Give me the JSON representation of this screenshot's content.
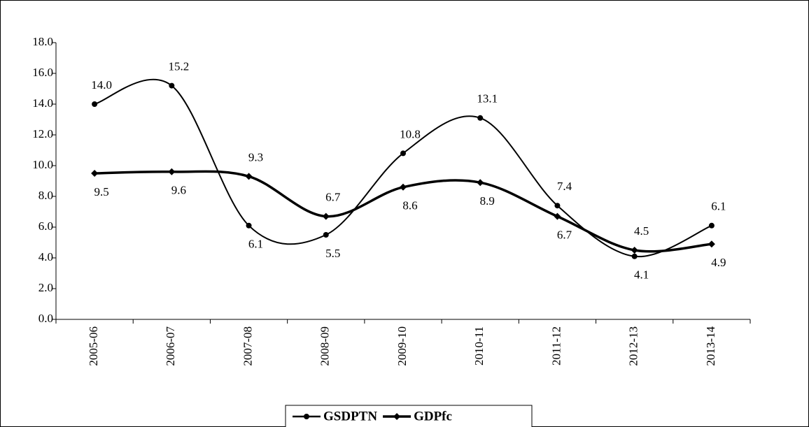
{
  "chart_data": {
    "type": "line",
    "categories": [
      "2005-06",
      "2006-07",
      "2007-08",
      "2008-09",
      "2009-10",
      "2010-11",
      "2011-12",
      "2012-13",
      "2013-14"
    ],
    "series": [
      {
        "name": "GSDPTN",
        "color": "#000000",
        "marker": "circle",
        "values": [
          14.0,
          15.2,
          6.1,
          5.5,
          10.8,
          13.1,
          7.4,
          4.1,
          6.1
        ],
        "value_labels": [
          "14.0",
          "15.2",
          "6.1",
          "5.5",
          "10.8",
          "13.1",
          "7.4",
          "4.1",
          "6.1"
        ]
      },
      {
        "name": "GDPfc",
        "color": "#000000",
        "marker": "diamond",
        "values": [
          9.5,
          9.6,
          9.3,
          6.7,
          8.6,
          8.9,
          6.7,
          4.5,
          4.9
        ],
        "value_labels": [
          "9.5",
          "9.6",
          "9.3",
          "6.7",
          "8.6",
          "8.9",
          "6.7",
          "4.5",
          "4.9"
        ]
      }
    ],
    "ylim": [
      0,
      18
    ],
    "yticks": [
      {
        "value": 0,
        "label": "0.0"
      },
      {
        "value": 2,
        "label": "2.0"
      },
      {
        "value": 4,
        "label": "4.0"
      },
      {
        "value": 6,
        "label": "6.0"
      },
      {
        "value": 8,
        "label": "8.0"
      },
      {
        "value": 10,
        "label": "10.0"
      },
      {
        "value": 12,
        "label": "12.0"
      },
      {
        "value": 14,
        "label": "14.0"
      },
      {
        "value": 16,
        "label": "16.0"
      },
      {
        "value": 18,
        "label": "18.0"
      }
    ],
    "smooth": true,
    "legend": "bottom"
  }
}
